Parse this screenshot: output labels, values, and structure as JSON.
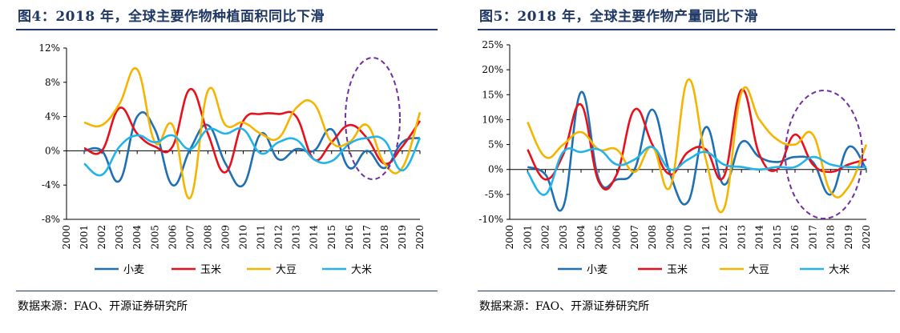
{
  "chart_data": [
    {
      "type": "line",
      "title": "图4：2018 年，全球主要作物种植面积同比下滑",
      "source": "数据来源：FAO、开源证券研究所",
      "x": [
        "2000",
        "2001",
        "2002",
        "2003",
        "2004",
        "2005",
        "2006",
        "2007",
        "2008",
        "2009",
        "2010",
        "2011",
        "2012",
        "2013",
        "2014",
        "2015",
        "2016",
        "2017",
        "2018",
        "2019",
        "2020"
      ],
      "ylim": [
        -8,
        12
      ],
      "yticks": [
        -8,
        -4,
        0,
        4,
        8,
        12
      ],
      "ytick_labels": [
        "-8%",
        "-4%",
        "0%",
        "4%",
        "8%",
        "12%"
      ],
      "legend_position": "bottom",
      "annotation": "dashed purple ellipse highlighting 2017-2020",
      "series": [
        {
          "name": "小麦",
          "color": "#1f6fb4",
          "values": [
            null,
            0.0,
            0.0,
            -3.5,
            4.0,
            2.5,
            -4.0,
            0.2,
            3.0,
            -1.5,
            -4.0,
            2.0,
            -1.0,
            0.2,
            0.0,
            2.5,
            -2.0,
            0.0,
            -2.0,
            1.0,
            1.5
          ]
        },
        {
          "name": "玉米",
          "color": "#e8101a",
          "values": [
            null,
            0.3,
            0.0,
            5.0,
            2.0,
            0.5,
            0.5,
            7.2,
            2.0,
            -2.5,
            3.5,
            4.3,
            4.3,
            4.0,
            -1.0,
            1.0,
            3.0,
            1.5,
            -1.5,
            0.5,
            3.5
          ]
        },
        {
          "name": "大豆",
          "color": "#f5b400",
          "values": [
            null,
            3.3,
            3.0,
            5.5,
            9.5,
            1.0,
            3.0,
            -5.5,
            7.0,
            3.0,
            3.3,
            2.0,
            1.5,
            5.0,
            5.5,
            1.0,
            1.0,
            3.0,
            -1.5,
            -2.0,
            4.5
          ]
        },
        {
          "name": "大米",
          "color": "#22b4e8",
          "values": [
            null,
            -1.5,
            -2.8,
            0.5,
            1.8,
            1.0,
            1.8,
            0.2,
            2.5,
            2.0,
            2.5,
            -0.3,
            1.0,
            1.3,
            -1.0,
            -1.2,
            0.8,
            1.5,
            1.2,
            -2.3,
            1.5
          ]
        }
      ]
    },
    {
      "type": "line",
      "title": "图5：2018 年，全球主要作物产量同比下滑",
      "source": "数据来源：FAO、开源证券研究所",
      "x": [
        "2000",
        "2001",
        "2002",
        "2003",
        "2004",
        "2005",
        "2006",
        "2007",
        "2008",
        "2009",
        "2010",
        "2011",
        "2012",
        "2013",
        "2014",
        "2015",
        "2016",
        "2017",
        "2018",
        "2019",
        "2020"
      ],
      "ylim": [
        -10,
        25
      ],
      "yticks": [
        -10,
        -5,
        0,
        5,
        10,
        15,
        20,
        25
      ],
      "ytick_labels": [
        "-10%",
        "-5%",
        "0%",
        "5%",
        "10%",
        "15%",
        "20%",
        "25%"
      ],
      "legend_position": "bottom",
      "annotation": "dashed purple ellipse highlighting 2016-2020",
      "series": [
        {
          "name": "小麦",
          "color": "#1f6fb4",
          "values": [
            null,
            0.5,
            -1.0,
            -7.5,
            15.5,
            -2.0,
            -2.0,
            0.0,
            12.0,
            -1.0,
            -6.5,
            8.5,
            -3.0,
            5.5,
            2.5,
            1.5,
            2.5,
            1.5,
            -5.0,
            4.5,
            0.0
          ]
        },
        {
          "name": "玉米",
          "color": "#e8101a",
          "values": [
            null,
            4.0,
            -2.0,
            3.0,
            13.0,
            -2.5,
            -1.0,
            12.0,
            5.0,
            -1.0,
            3.5,
            4.0,
            -1.5,
            16.0,
            3.0,
            0.0,
            7.0,
            1.0,
            -0.5,
            1.0,
            2.0
          ]
        },
        {
          "name": "大豆",
          "color": "#f5b400",
          "values": [
            null,
            9.5,
            2.5,
            5.0,
            7.5,
            4.0,
            4.0,
            -0.5,
            4.5,
            -3.5,
            18.0,
            2.0,
            -8.0,
            15.5,
            10.0,
            6.0,
            5.0,
            7.0,
            -4.5,
            -3.5,
            5.0
          ]
        },
        {
          "name": "大米",
          "color": "#22b4e8",
          "values": [
            null,
            -0.5,
            -5.0,
            3.5,
            3.5,
            4.0,
            1.0,
            2.0,
            4.5,
            0.0,
            2.0,
            3.5,
            1.0,
            0.5,
            0.0,
            0.5,
            0.5,
            2.5,
            1.0,
            0.5,
            0.5
          ]
        }
      ]
    }
  ]
}
